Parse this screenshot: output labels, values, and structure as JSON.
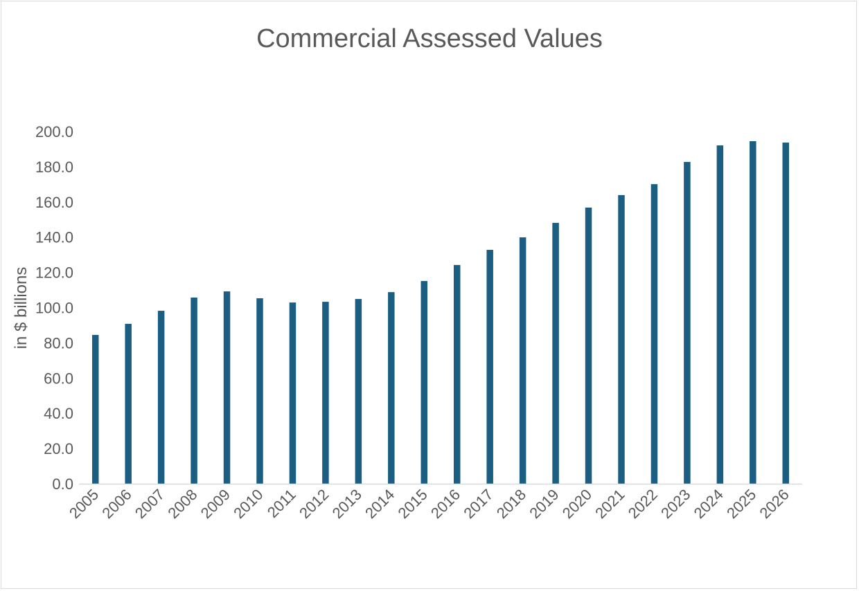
{
  "chart_data": {
    "type": "bar",
    "title": "Commercial Assessed Values",
    "xlabel": "",
    "ylabel": "in $ billions",
    "ylim": [
      0,
      200
    ],
    "yticks": [
      "0.0",
      "20.0",
      "40.0",
      "60.0",
      "80.0",
      "100.0",
      "120.0",
      "140.0",
      "160.0",
      "180.0",
      "200.0"
    ],
    "grid": false,
    "legend": "none",
    "bar_color": "#1b5e82",
    "categories": [
      "2005",
      "2006",
      "2007",
      "2008",
      "2009",
      "2010",
      "2011",
      "2012",
      "2013",
      "2014",
      "2015",
      "2016",
      "2017",
      "2018",
      "2019",
      "2020",
      "2021",
      "2022",
      "2023",
      "2024",
      "2025",
      "2026"
    ],
    "values": [
      84.5,
      90.8,
      98.2,
      105.7,
      109.2,
      105.3,
      102.9,
      103.3,
      104.9,
      108.8,
      115.1,
      124.2,
      132.8,
      139.9,
      148.1,
      156.8,
      163.9,
      170.1,
      182.7,
      192.1,
      194.5,
      193.7
    ]
  }
}
